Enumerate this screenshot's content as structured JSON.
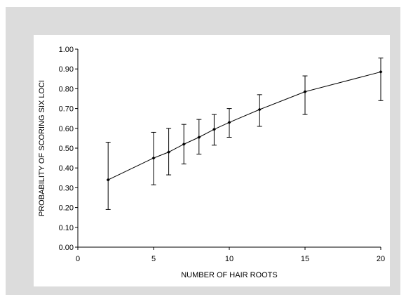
{
  "chart_data": {
    "type": "line",
    "title": "",
    "xlabel": "NUMBER OF HAIR ROOTS",
    "ylabel": "PROBABILITY OF SCORING SIX LOCI",
    "xlim": [
      0,
      20
    ],
    "ylim": [
      0,
      1
    ],
    "x_ticks": [
      "0",
      "5",
      "10",
      "15",
      "20"
    ],
    "y_ticks": [
      "0.00",
      "0.10",
      "0.20",
      "0.30",
      "0.40",
      "0.50",
      "0.60",
      "0.70",
      "0.80",
      "0.90",
      "1.00"
    ],
    "grid": false,
    "legend": "none",
    "series": [
      {
        "x": [
          2,
          5,
          6,
          7,
          8,
          9,
          10,
          12,
          15,
          20
        ],
        "y": [
          0.34,
          0.45,
          0.48,
          0.52,
          0.555,
          0.595,
          0.63,
          0.695,
          0.785,
          0.885
        ],
        "err_low": [
          0.19,
          0.315,
          0.365,
          0.42,
          0.47,
          0.515,
          0.555,
          0.61,
          0.67,
          0.74
        ],
        "err_high": [
          0.53,
          0.58,
          0.6,
          0.62,
          0.645,
          0.67,
          0.7,
          0.77,
          0.865,
          0.955
        ]
      }
    ],
    "colors": {
      "line": "#000000",
      "frame": "#dcdcdc",
      "panel": "#ffffff"
    }
  }
}
